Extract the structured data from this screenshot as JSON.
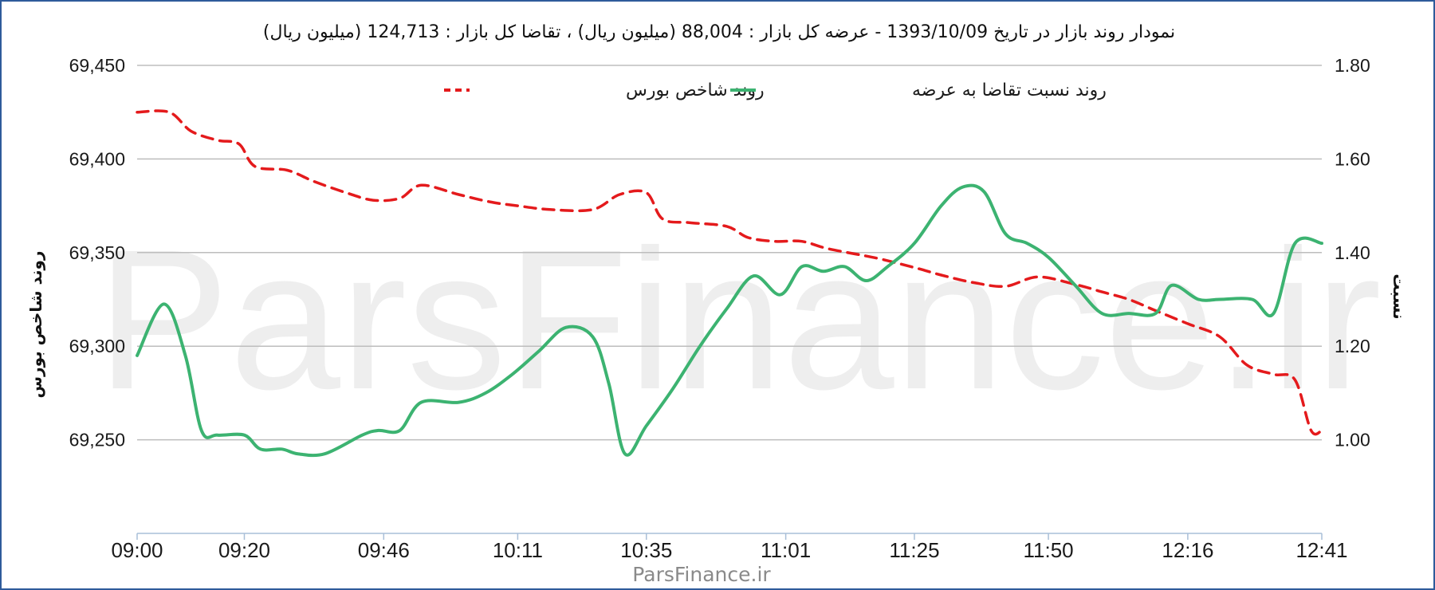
{
  "title": "نمودار روند بازار در تاریخ 1393/10/09 - عرضه کل بازار : 88,004 (میلیون ریال) ، تقاضا کل بازار : 124,713 (میلیون ریال)",
  "footer": "ParsFinance.ir",
  "watermark": "ParsFinance.ir",
  "chart_data": {
    "type": "line",
    "title": "نمودار روند بازار در تاریخ 1393/10/09 - عرضه کل بازار : 88,004 (میلیون ریال) ، تقاضا کل بازار : 124,713 (میلیون ریال)",
    "x_tick_labels": [
      "09:00",
      "09:20",
      "09:46",
      "10:11",
      "10:35",
      "11:01",
      "11:25",
      "11:50",
      "12:16",
      "12:41"
    ],
    "x_range": [
      "09:00",
      "12:41"
    ],
    "y_left": {
      "label": "روند شاخص بورس",
      "range": [
        69200,
        69450
      ],
      "ticks": [
        "69,450",
        "69,400",
        "69,350",
        "69,300",
        "69,250"
      ]
    },
    "y_right": {
      "label": "نسبت",
      "range": [
        0.8,
        1.8
      ],
      "ticks": [
        "1.80",
        "1.60",
        "1.40",
        "1.20",
        "1.00"
      ]
    },
    "grid": true,
    "legend_position": "top",
    "series": [
      {
        "name": "روند شاخص بورس",
        "axis": "left",
        "color": "#e41a1c",
        "style": "dashed",
        "points": [
          [
            "09:00",
            69425
          ],
          [
            "09:06",
            69425
          ],
          [
            "09:10",
            69415
          ],
          [
            "09:15",
            69410
          ],
          [
            "09:19",
            69408
          ],
          [
            "09:22",
            69396
          ],
          [
            "09:28",
            69394
          ],
          [
            "09:33",
            69388
          ],
          [
            "09:39",
            69382
          ],
          [
            "09:44",
            69378
          ],
          [
            "09:49",
            69379
          ],
          [
            "09:53",
            69386
          ],
          [
            "10:00",
            69381
          ],
          [
            "10:06",
            69377
          ],
          [
            "10:11",
            69375
          ],
          [
            "10:17",
            69373
          ],
          [
            "10:25",
            69373
          ],
          [
            "10:30",
            69381
          ],
          [
            "10:35",
            69382
          ],
          [
            "10:38",
            69368
          ],
          [
            "10:43",
            69366
          ],
          [
            "10:50",
            69364
          ],
          [
            "10:54",
            69358
          ],
          [
            "10:59",
            69356
          ],
          [
            "11:04",
            69356
          ],
          [
            "11:09",
            69352
          ],
          [
            "11:18",
            69347
          ],
          [
            "11:25",
            69342
          ],
          [
            "11:30",
            69338
          ],
          [
            "11:36",
            69334
          ],
          [
            "11:42",
            69332
          ],
          [
            "11:48",
            69337
          ],
          [
            "11:55",
            69333
          ],
          [
            "12:00",
            69329
          ],
          [
            "12:05",
            69325
          ],
          [
            "12:10",
            69319
          ],
          [
            "12:16",
            69312
          ],
          [
            "12:22",
            69305
          ],
          [
            "12:27",
            69290
          ],
          [
            "12:32",
            69285
          ],
          [
            "12:36",
            69282
          ],
          [
            "12:39",
            69255
          ],
          [
            "12:41",
            69255
          ]
        ]
      },
      {
        "name": "روند نسبت تقاضا به عرضه",
        "axis": "right",
        "color": "#3cb371",
        "style": "solid",
        "points": [
          [
            "09:00",
            1.18
          ],
          [
            "09:05",
            1.29
          ],
          [
            "09:09",
            1.18
          ],
          [
            "09:12",
            1.02
          ],
          [
            "09:15",
            1.01
          ],
          [
            "09:20",
            1.01
          ],
          [
            "09:23",
            0.98
          ],
          [
            "09:27",
            0.98
          ],
          [
            "09:30",
            0.97
          ],
          [
            "09:35",
            0.97
          ],
          [
            "09:42",
            1.01
          ],
          [
            "09:45",
            1.02
          ],
          [
            "09:49",
            1.02
          ],
          [
            "09:53",
            1.08
          ],
          [
            "10:00",
            1.08
          ],
          [
            "10:05",
            1.1
          ],
          [
            "10:10",
            1.14
          ],
          [
            "10:15",
            1.19
          ],
          [
            "10:20",
            1.24
          ],
          [
            "10:25",
            1.22
          ],
          [
            "10:28",
            1.12
          ],
          [
            "10:31",
            0.97
          ],
          [
            "10:35",
            1.03
          ],
          [
            "10:40",
            1.11
          ],
          [
            "10:45",
            1.2
          ],
          [
            "10:50",
            1.28
          ],
          [
            "10:55",
            1.35
          ],
          [
            "11:00",
            1.31
          ],
          [
            "11:04",
            1.37
          ],
          [
            "11:08",
            1.36
          ],
          [
            "11:12",
            1.37
          ],
          [
            "11:16",
            1.34
          ],
          [
            "11:20",
            1.37
          ],
          [
            "11:25",
            1.42
          ],
          [
            "11:30",
            1.5
          ],
          [
            "11:34",
            1.54
          ],
          [
            "11:38",
            1.53
          ],
          [
            "11:42",
            1.44
          ],
          [
            "11:46",
            1.42
          ],
          [
            "11:50",
            1.39
          ],
          [
            "11:55",
            1.33
          ],
          [
            "12:00",
            1.27
          ],
          [
            "12:05",
            1.27
          ],
          [
            "12:10",
            1.27
          ],
          [
            "12:13",
            1.33
          ],
          [
            "12:18",
            1.3
          ],
          [
            "12:22",
            1.3
          ],
          [
            "12:28",
            1.3
          ],
          [
            "12:32",
            1.27
          ],
          [
            "12:36",
            1.42
          ],
          [
            "12:41",
            1.42
          ]
        ]
      }
    ]
  }
}
